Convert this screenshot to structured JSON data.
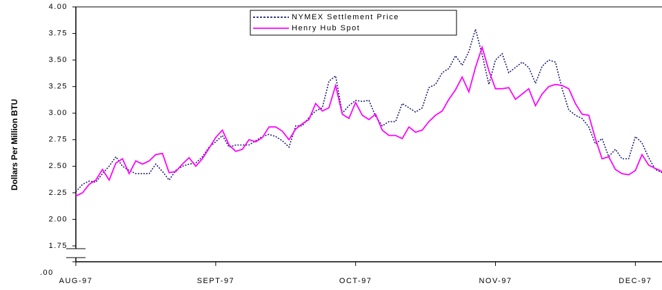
{
  "chart_data": {
    "type": "line",
    "y_label": "Dollars Per Million BTU",
    "x": [
      0,
      1,
      2,
      3,
      4,
      5,
      6,
      7,
      8,
      9,
      10,
      11,
      12,
      13,
      14,
      15,
      16,
      17,
      18,
      19,
      20,
      21,
      22,
      23,
      24,
      25,
      26,
      27,
      28,
      29,
      30,
      31,
      32,
      33,
      34,
      35,
      36,
      37,
      38,
      39,
      40,
      41,
      42,
      43,
      44,
      45,
      46,
      47,
      48,
      49,
      50,
      51,
      52,
      53,
      54,
      55,
      56,
      57,
      58,
      59,
      60,
      61,
      62,
      63,
      64,
      65,
      66,
      67,
      68,
      69,
      70,
      71,
      72,
      73,
      74,
      75,
      76,
      77,
      78,
      79,
      80,
      81,
      82,
      83,
      84,
      85,
      86,
      87,
      88
    ],
    "xlim": [
      0,
      88
    ],
    "xticks": [
      {
        "value": 0,
        "label": "AUG-97"
      },
      {
        "value": 21,
        "label": "SEPT-97"
      },
      {
        "value": 42,
        "label": "OCT-97"
      },
      {
        "value": 63,
        "label": "NOV-97"
      },
      {
        "value": 84,
        "label": "DEC-97"
      }
    ],
    "ylim": [
      0,
      4
    ],
    "y_break": [
      0,
      1.75
    ],
    "yticks": [
      {
        "value": 0,
        "label": ".00"
      },
      1.75,
      {
        "value": 2,
        "label": "2.00"
      },
      2.25,
      {
        "value": 2.5,
        "label": "2.50"
      },
      2.75,
      {
        "value": 3,
        "label": "3.00"
      },
      3.25,
      {
        "value": 3.5,
        "label": "3.50"
      },
      3.75,
      {
        "value": 4,
        "label": "4.00"
      }
    ],
    "legend_position": "top",
    "series": [
      {
        "name": "NYMEX Settlement Price",
        "color": "#1a1a6e",
        "dash": "dotted",
        "values": [
          2.26,
          2.33,
          2.36,
          2.35,
          2.43,
          2.5,
          2.59,
          2.5,
          2.46,
          2.43,
          2.43,
          2.43,
          2.52,
          2.45,
          2.37,
          2.46,
          2.5,
          2.52,
          2.53,
          2.59,
          2.68,
          2.73,
          2.79,
          2.68,
          2.7,
          2.7,
          2.7,
          2.74,
          2.78,
          2.8,
          2.78,
          2.74,
          2.68,
          2.88,
          2.88,
          2.96,
          3.02,
          3.05,
          3.3,
          3.35,
          3.0,
          3.07,
          3.12,
          3.11,
          3.12,
          2.97,
          2.88,
          2.92,
          2.92,
          3.09,
          3.05,
          3.01,
          3.05,
          3.24,
          3.27,
          3.38,
          3.42,
          3.54,
          3.45,
          3.58,
          3.79,
          3.55,
          3.27,
          3.5,
          3.56,
          3.38,
          3.43,
          3.48,
          3.43,
          3.28,
          3.44,
          3.5,
          3.48,
          3.23,
          3.03,
          2.98,
          2.95,
          2.87,
          2.71,
          2.76,
          2.59,
          2.66,
          2.57,
          2.57,
          2.78,
          2.72,
          2.58,
          2.47,
          2.44
        ]
      },
      {
        "name": "Henry Hub Spot",
        "color": "#ff00ff",
        "dash": "solid",
        "values": [
          2.22,
          2.25,
          2.33,
          2.37,
          2.47,
          2.37,
          2.53,
          2.57,
          2.43,
          2.55,
          2.52,
          2.55,
          2.61,
          2.62,
          2.44,
          2.45,
          2.52,
          2.58,
          2.5,
          2.57,
          2.67,
          2.77,
          2.84,
          2.7,
          2.64,
          2.66,
          2.75,
          2.73,
          2.77,
          2.87,
          2.87,
          2.83,
          2.75,
          2.85,
          2.9,
          2.94,
          3.09,
          3.02,
          3.05,
          3.26,
          2.99,
          2.95,
          3.1,
          2.98,
          2.94,
          2.99,
          2.84,
          2.79,
          2.79,
          2.76,
          2.87,
          2.82,
          2.84,
          2.92,
          2.98,
          3.02,
          3.13,
          3.22,
          3.34,
          3.2,
          3.43,
          3.62,
          3.4,
          3.23,
          3.23,
          3.24,
          3.13,
          3.18,
          3.23,
          3.07,
          3.18,
          3.25,
          3.27,
          3.26,
          3.23,
          3.09,
          2.99,
          2.98,
          2.76,
          2.57,
          2.59,
          2.47,
          2.43,
          2.42,
          2.46,
          2.61,
          2.51,
          2.48,
          2.45
        ]
      }
    ]
  }
}
